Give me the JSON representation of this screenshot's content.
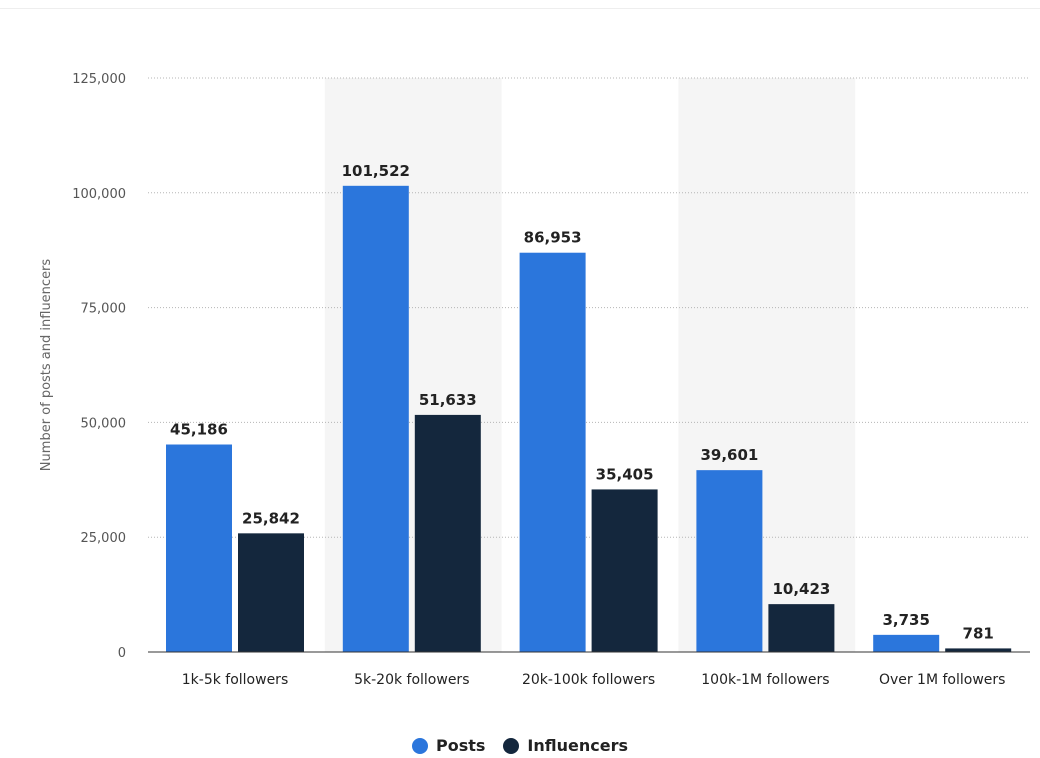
{
  "chart_data": {
    "type": "bar",
    "title": "",
    "xlabel": "",
    "ylabel": "Number of posts and influencers",
    "ylim": [
      0,
      125000
    ],
    "yticks": [
      0,
      25000,
      50000,
      75000,
      100000,
      125000
    ],
    "ytick_labels": [
      "0",
      "25,000",
      "50,000",
      "75,000",
      "100,000",
      "125,000"
    ],
    "grid": "horizontal dotted",
    "legend_position": "bottom-center",
    "categories": [
      "1k-5k followers",
      "5k-20k followers",
      "20k-100k followers",
      "100k-1M followers",
      "Over 1M followers"
    ],
    "series": [
      {
        "name": "Posts",
        "color": "#2b76dc",
        "values": [
          45186,
          101522,
          86953,
          39601,
          3735
        ],
        "labels": [
          "45,186",
          "101,522",
          "86,953",
          "39,601",
          "3,735"
        ]
      },
      {
        "name": "Influencers",
        "color": "#14273d",
        "values": [
          25842,
          51633,
          35405,
          10423,
          781
        ],
        "labels": [
          "25,842",
          "51,633",
          "35,405",
          "10,423",
          "781"
        ]
      }
    ],
    "alternating_band_color": "#f5f5f5"
  }
}
